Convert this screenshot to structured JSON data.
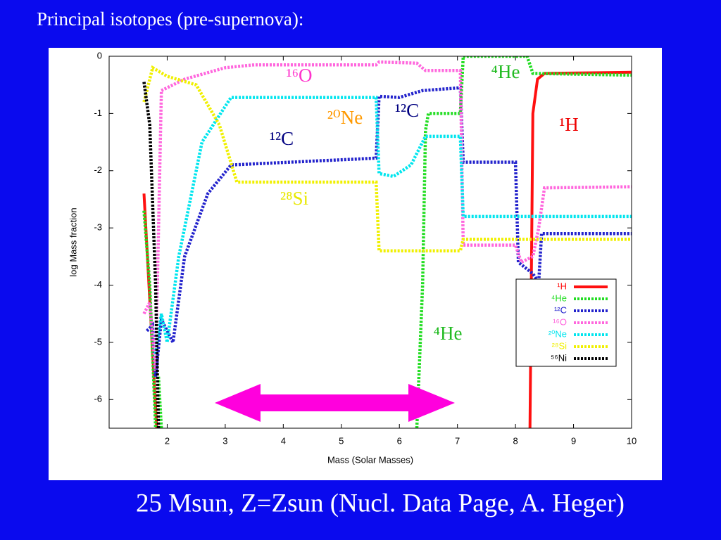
{
  "chart_data": {
    "type": "line",
    "title": "Principal isotopes (pre-supernova):",
    "caption": "25 Msun, Z=Zsun (Nucl. Data Page, A. Heger)",
    "x_label": "Mass (Solar Masses)",
    "y_label": "log Mass fraction",
    "xlim": [
      1,
      10
    ],
    "ylim": [
      -6.5,
      0
    ],
    "xticks": [
      2,
      3,
      4,
      5,
      6,
      7,
      8,
      9,
      10
    ],
    "yticks": [
      0,
      -1,
      -2,
      -3,
      -4,
      -5,
      -6
    ],
    "legend": "right",
    "series": [
      {
        "name": "¹H",
        "color": "#ff1010",
        "style": "solid",
        "x": [
          1.6,
          1.82,
          5,
          8.25,
          8.3,
          8.38,
          8.5,
          10
        ],
        "values": [
          -2.4,
          -6.5,
          null,
          -6.5,
          -1.0,
          -0.4,
          -0.3,
          -0.28
        ]
      },
      {
        "name": "⁴He",
        "color": "#22dd22",
        "style": "dotted",
        "x": [
          1.6,
          1.7,
          1.8,
          1.83,
          1.85,
          1.9,
          4,
          6.3,
          6.4,
          6.45,
          6.5,
          7.05,
          7.1,
          8.2,
          8.3,
          10
        ],
        "values": [
          -2.7,
          -4.0,
          -6.5,
          null,
          -5.6,
          -6.5,
          null,
          -6.5,
          -4.0,
          -1.3,
          -1.0,
          -1.0,
          0,
          0,
          -0.3,
          -0.33
        ]
      },
      {
        "name": "¹²C",
        "color": "#2222cc",
        "style": "dotted",
        "x": [
          1.65,
          1.75,
          1.8,
          1.9,
          2.1,
          2.3,
          2.7,
          3.1,
          5.6,
          5.65,
          6.0,
          6.4,
          7.05,
          7.1,
          8.0,
          8.05,
          8.3,
          8.4,
          8.45,
          10
        ],
        "values": [
          -4.8,
          -4.7,
          -5.6,
          -4.6,
          -5.0,
          -3.5,
          -2.4,
          -1.9,
          -1.78,
          -0.7,
          -0.72,
          -0.6,
          -0.55,
          -1.85,
          -1.85,
          -3.6,
          -3.8,
          -3.95,
          -3.1,
          -3.1
        ]
      },
      {
        "name": "¹⁶O",
        "color": "#ff66dd",
        "style": "dotted",
        "x": [
          1.6,
          1.7,
          1.8,
          1.9,
          2.3,
          3,
          3.5,
          5.6,
          5.65,
          6.3,
          6.45,
          7.05,
          7.1,
          8.0,
          8.1,
          8.3,
          8.4,
          8.5,
          10
        ],
        "values": [
          -4.5,
          -4.3,
          -5.5,
          -0.6,
          -0.4,
          -0.2,
          -0.15,
          -0.15,
          -0.1,
          -0.12,
          -0.25,
          -0.25,
          -3.3,
          -3.3,
          -3.6,
          -3.5,
          -3.0,
          -2.3,
          -2.28
        ]
      },
      {
        "name": "²⁰Ne",
        "color": "#00e5ee",
        "style": "dotted",
        "x": [
          1.8,
          1.9,
          2.0,
          2.2,
          2.6,
          3.1,
          5.6,
          5.65,
          5.9,
          6.2,
          6.45,
          7.05,
          7.1,
          10
        ],
        "values": [
          -5.2,
          -4.5,
          -5.0,
          -3.5,
          -1.5,
          -0.72,
          -0.72,
          -2.05,
          -2.1,
          -1.9,
          -1.4,
          -1.4,
          -2.8,
          -2.8
        ]
      },
      {
        "name": "²⁸Si",
        "color": "#f0f000",
        "style": "dotted",
        "x": [
          1.6,
          1.75,
          2.0,
          2.5,
          2.9,
          3.2,
          5.6,
          5.65,
          7.05,
          7.1,
          10
        ],
        "values": [
          -0.8,
          -0.2,
          -0.35,
          -0.5,
          -1.2,
          -2.2,
          -2.2,
          -3.4,
          -3.4,
          -3.2,
          -3.2
        ]
      },
      {
        "name": "⁵⁶Ni",
        "color": "#000000",
        "style": "dotted",
        "x": [
          1.6,
          1.7,
          1.8,
          1.85
        ],
        "values": [
          -0.45,
          -1.2,
          -4.0,
          -6.5
        ]
      }
    ],
    "annotations": [
      {
        "text": "¹⁶O",
        "color": "#ff33cc"
      },
      {
        "text": "²⁰Ne",
        "color": "#ff9900"
      },
      {
        "text": "¹²C",
        "color": "#000080"
      },
      {
        "text": "¹²C",
        "color": "#000080"
      },
      {
        "text": "²⁸Si",
        "color": "#e8e800"
      },
      {
        "text": "⁴He",
        "color": "#22bb22"
      },
      {
        "text": "⁴He",
        "color": "#22bb22"
      },
      {
        "text": "¹H",
        "color": "#ee0000"
      }
    ]
  }
}
